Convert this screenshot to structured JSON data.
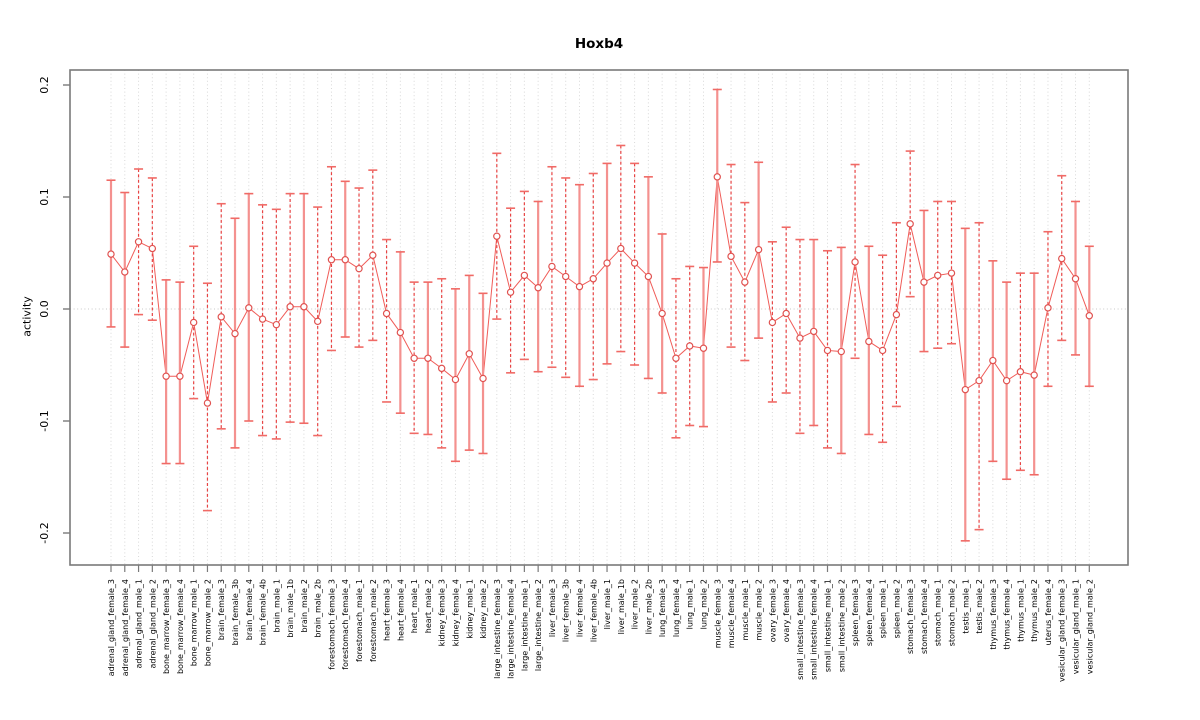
{
  "title": "Hoxb4",
  "ylabel": "activity",
  "colors": {
    "bar_solid": "#f4918f",
    "bar_dashed": "#e84444",
    "cap": "#f06a66",
    "point_stroke": "#e05250",
    "connect_line": "#f05c58",
    "grid": "#d8d8d8",
    "zero_line": "#c8c8c8",
    "border": "#7a7a7a",
    "tick_text": "#000000"
  },
  "chart_data": {
    "type": "line",
    "subtype": "points-with-error-bars",
    "title": "Hoxb4",
    "xlabel": "",
    "ylabel": "activity",
    "ylim": [
      -0.2286,
      0.2134
    ],
    "yticks": [
      0.2,
      0.1,
      0.0,
      -0.1,
      -0.2
    ],
    "grid": "vertical-dotted-per-category, dotted-zero-line",
    "legend": "none",
    "categories": [
      "adrenal_gland_female_3",
      "adrenal_gland_female_4",
      "adrenal_gland_male_1",
      "adrenal_gland_male_2",
      "bone_marrow_female_3",
      "bone_marrow_female_4",
      "bone_marrow_male_1",
      "bone_marrow_male_2",
      "brain_female_3",
      "brain_female_3b",
      "brain_female_4",
      "brain_female_4b",
      "brain_male_1",
      "brain_male_1b",
      "brain_male_2",
      "brain_male_2b",
      "forestomach_female_3",
      "forestomach_female_4",
      "forestomach_male_1",
      "forestomach_male_2",
      "heart_female_3",
      "heart_female_4",
      "heart_male_1",
      "heart_male_2",
      "kidney_female_3",
      "kidney_female_4",
      "kidney_male_1",
      "kidney_male_2",
      "large_intestine_female_3",
      "large_intestine_female_4",
      "large_intestine_male_1",
      "large_intestine_male_2",
      "liver_female_3",
      "liver_female_3b",
      "liver_female_4",
      "liver_female_4b",
      "liver_male_1",
      "liver_male_1b",
      "liver_male_2",
      "liver_male_2b",
      "lung_female_3",
      "lung_female_4",
      "lung_male_1",
      "lung_male_2",
      "muscle_female_3",
      "muscle_female_4",
      "muscle_male_1",
      "muscle_male_2",
      "ovary_female_3",
      "ovary_female_4",
      "small_intestine_female_3",
      "small_intestine_female_4",
      "small_intestine_male_1",
      "small_intestine_male_2",
      "spleen_female_3",
      "spleen_female_4",
      "spleen_male_1",
      "spleen_male_2",
      "stomach_female_3",
      "stomach_female_4",
      "stomach_male_1",
      "stomach_male_2",
      "testis_male_1",
      "testis_male_2",
      "thymus_female_3",
      "thymus_female_4",
      "thymus_male_1",
      "thymus_male_2",
      "uterus_female_4",
      "vesicular_gland_female_3",
      "vesicular_gland_male_1",
      "vesicular_gland_male_2"
    ],
    "series": [
      {
        "name": "activity",
        "values": [
          0.049,
          0.033,
          0.06,
          0.054,
          -0.06,
          -0.06,
          -0.012,
          -0.084,
          -0.007,
          -0.022,
          0.001,
          -0.009,
          -0.014,
          0.002,
          0.002,
          -0.011,
          0.044,
          0.044,
          0.036,
          0.048,
          -0.004,
          -0.021,
          -0.044,
          -0.044,
          -0.053,
          -0.063,
          -0.04,
          -0.062,
          0.065,
          0.015,
          0.03,
          0.019,
          0.038,
          0.029,
          0.02,
          0.027,
          0.041,
          0.054,
          0.041,
          0.029,
          -0.004,
          -0.044,
          -0.033,
          -0.035,
          0.118,
          0.047,
          0.024,
          0.053,
          -0.012,
          -0.004,
          -0.026,
          -0.02,
          -0.037,
          -0.038,
          0.042,
          -0.029,
          -0.037,
          -0.005,
          0.076,
          0.024,
          0.03,
          0.032,
          -0.072,
          -0.064,
          -0.046,
          -0.064,
          -0.056,
          -0.059,
          0.001,
          0.045,
          0.027,
          -0.006
        ]
      },
      {
        "name": "ci_upper",
        "values": [
          0.115,
          0.104,
          0.125,
          0.117,
          0.026,
          0.024,
          0.056,
          0.023,
          0.094,
          0.081,
          0.103,
          0.093,
          0.089,
          0.103,
          0.103,
          0.091,
          0.127,
          0.114,
          0.108,
          0.124,
          0.062,
          0.051,
          0.024,
          0.024,
          0.027,
          0.018,
          0.03,
          0.014,
          0.139,
          0.09,
          0.105,
          0.096,
          0.127,
          0.117,
          0.111,
          0.121,
          0.13,
          0.146,
          0.13,
          0.118,
          0.067,
          0.027,
          0.038,
          0.037,
          0.196,
          0.129,
          0.095,
          0.131,
          0.06,
          0.073,
          0.062,
          0.062,
          0.052,
          0.055,
          0.129,
          0.056,
          0.048,
          0.077,
          0.141,
          0.088,
          0.096,
          0.096,
          0.072,
          0.077,
          0.043,
          0.024,
          0.032,
          0.032,
          0.069,
          0.119,
          0.096,
          0.056
        ]
      },
      {
        "name": "ci_lower",
        "values": [
          -0.016,
          -0.034,
          -0.005,
          -0.01,
          -0.138,
          -0.138,
          -0.08,
          -0.18,
          -0.107,
          -0.124,
          -0.1,
          -0.113,
          -0.116,
          -0.101,
          -0.102,
          -0.113,
          -0.037,
          -0.025,
          -0.034,
          -0.028,
          -0.083,
          -0.093,
          -0.111,
          -0.112,
          -0.124,
          -0.136,
          -0.126,
          -0.129,
          -0.009,
          -0.057,
          -0.045,
          -0.056,
          -0.052,
          -0.061,
          -0.069,
          -0.063,
          -0.049,
          -0.038,
          -0.05,
          -0.062,
          -0.075,
          -0.115,
          -0.104,
          -0.105,
          0.042,
          -0.034,
          -0.046,
          -0.026,
          -0.083,
          -0.075,
          -0.111,
          -0.104,
          -0.124,
          -0.129,
          -0.044,
          -0.112,
          -0.119,
          -0.087,
          0.011,
          -0.038,
          -0.035,
          -0.031,
          -0.207,
          -0.197,
          -0.136,
          -0.152,
          -0.144,
          -0.148,
          -0.069,
          -0.028,
          -0.041,
          -0.069
        ]
      }
    ],
    "bar_style_dashed": [
      false,
      false,
      true,
      true,
      false,
      false,
      true,
      true,
      true,
      false,
      false,
      true,
      true,
      true,
      false,
      true,
      true,
      false,
      true,
      true,
      true,
      false,
      true,
      false,
      true,
      false,
      false,
      false,
      true,
      true,
      true,
      false,
      true,
      true,
      false,
      true,
      false,
      true,
      true,
      false,
      false,
      true,
      true,
      false,
      false,
      true,
      true,
      false,
      true,
      true,
      true,
      false,
      true,
      false,
      true,
      false,
      true,
      true,
      true,
      false,
      true,
      true,
      false,
      true,
      false,
      false,
      true,
      false,
      true,
      true,
      false,
      false
    ]
  }
}
